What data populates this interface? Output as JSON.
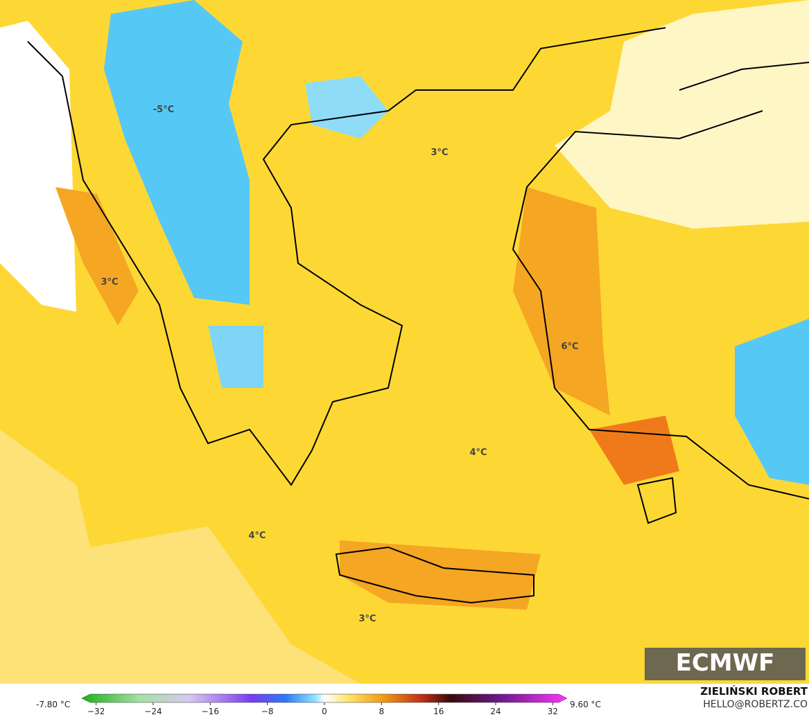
{
  "map_labels": [
    "-5°C",
    "3°C",
    "3°C",
    "6°C",
    "4°C",
    "4°C",
    "3°C"
  ],
  "logo": "ECMWF",
  "colorbar": {
    "min_label": "-7.80 °C",
    "max_label": "9.60 °C",
    "lim": [
      -34,
      34
    ],
    "ticks": [
      {
        "value": -32,
        "label": "−32"
      },
      {
        "value": -24,
        "label": "−24"
      },
      {
        "value": -16,
        "label": "−16"
      },
      {
        "value": -8,
        "label": "−8"
      },
      0,
      8,
      16,
      24,
      32
    ]
  },
  "credit": {
    "author": "ZIELIŃSKI ROBERT",
    "email": "HELLO@ROBERTZ.CO"
  }
}
